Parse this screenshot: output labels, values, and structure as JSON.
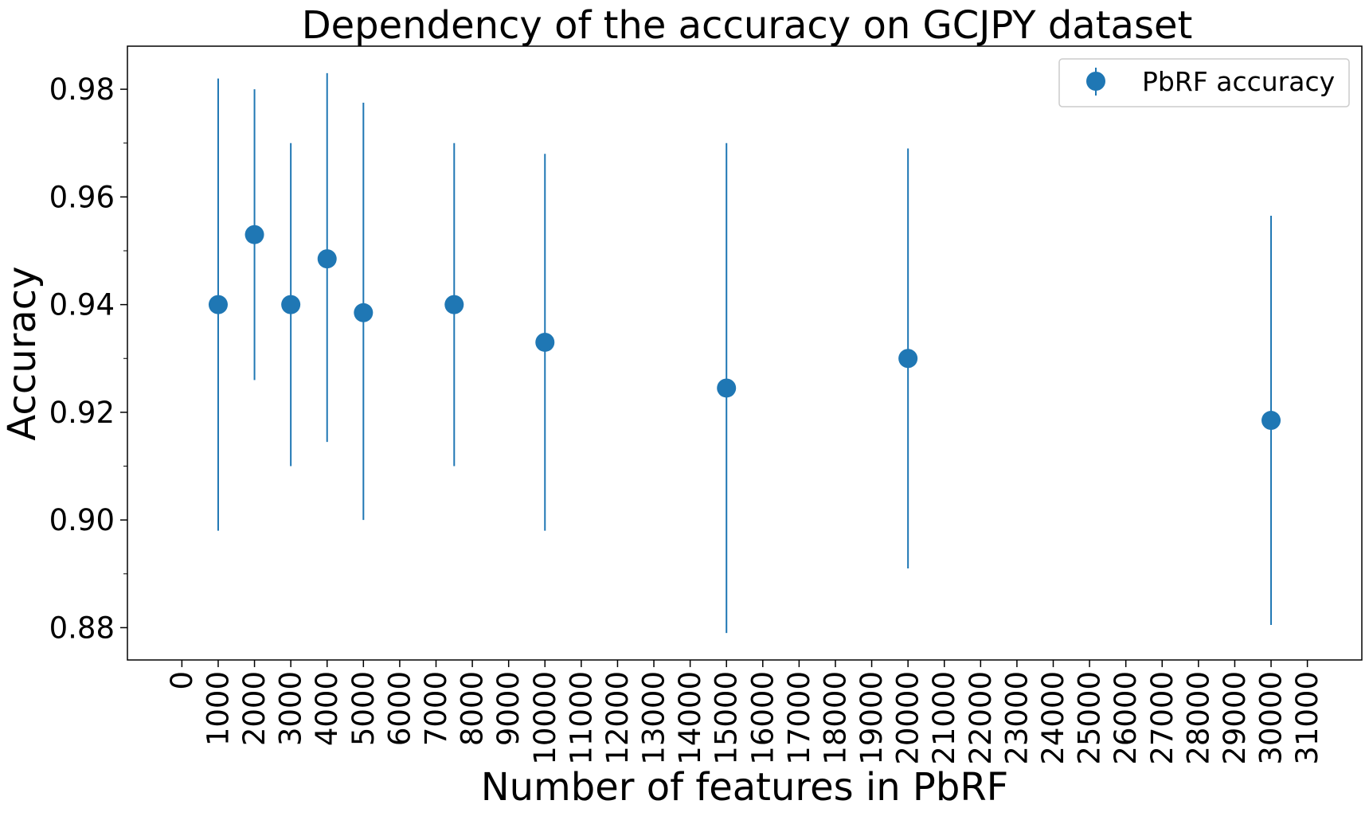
{
  "chart_data": {
    "type": "scatter",
    "title": "Dependency of the accuracy on GCJPY dataset",
    "xlabel": "Number of features in PbRF",
    "ylabel": "Accuracy",
    "xlim": [
      -1500,
      32500
    ],
    "ylim": [
      0.874,
      0.988
    ],
    "x_ticks": [
      0,
      1000,
      2000,
      3000,
      4000,
      5000,
      6000,
      7000,
      8000,
      9000,
      10000,
      11000,
      12000,
      13000,
      14000,
      15000,
      16000,
      17000,
      18000,
      19000,
      20000,
      21000,
      22000,
      23000,
      24000,
      25000,
      26000,
      27000,
      28000,
      29000,
      30000,
      31000
    ],
    "x_tick_labels": [
      "0",
      "1000",
      "2000",
      "3000",
      "4000",
      "5000",
      "6000",
      "7000",
      "8000",
      "9000",
      "10000",
      "11000",
      "12000",
      "13000",
      "14000",
      "15000",
      "16000",
      "17000",
      "18000",
      "19000",
      "20000",
      "21000",
      "22000",
      "23000",
      "24000",
      "25000",
      "26000",
      "27000",
      "28000",
      "29000",
      "30000",
      "31000"
    ],
    "y_ticks": [
      0.88,
      0.9,
      0.92,
      0.94,
      0.96,
      0.98
    ],
    "y_tick_labels": [
      "0.88",
      "0.90",
      "0.92",
      "0.94",
      "0.96",
      "0.98"
    ],
    "y_minor_ticks": [
      0.89,
      0.91,
      0.93,
      0.95,
      0.97
    ],
    "grid": false,
    "legend": {
      "position": "top-right",
      "label": "PbRF accuracy"
    },
    "series": [
      {
        "name": "PbRF accuracy",
        "color": "#1f77b4",
        "points": [
          {
            "x": 1000,
            "y": 0.94,
            "yerr_low": 0.898,
            "yerr_high": 0.982
          },
          {
            "x": 2000,
            "y": 0.953,
            "yerr_low": 0.926,
            "yerr_high": 0.98
          },
          {
            "x": 3000,
            "y": 0.94,
            "yerr_low": 0.91,
            "yerr_high": 0.97
          },
          {
            "x": 4000,
            "y": 0.9485,
            "yerr_low": 0.9145,
            "yerr_high": 0.983
          },
          {
            "x": 5000,
            "y": 0.9385,
            "yerr_low": 0.9,
            "yerr_high": 0.9775
          },
          {
            "x": 7500,
            "y": 0.94,
            "yerr_low": 0.91,
            "yerr_high": 0.97
          },
          {
            "x": 10000,
            "y": 0.933,
            "yerr_low": 0.898,
            "yerr_high": 0.968
          },
          {
            "x": 15000,
            "y": 0.9245,
            "yerr_low": 0.879,
            "yerr_high": 0.97
          },
          {
            "x": 20000,
            "y": 0.93,
            "yerr_low": 0.891,
            "yerr_high": 0.969
          },
          {
            "x": 30000,
            "y": 0.9185,
            "yerr_low": 0.8805,
            "yerr_high": 0.9565
          }
        ]
      }
    ]
  }
}
